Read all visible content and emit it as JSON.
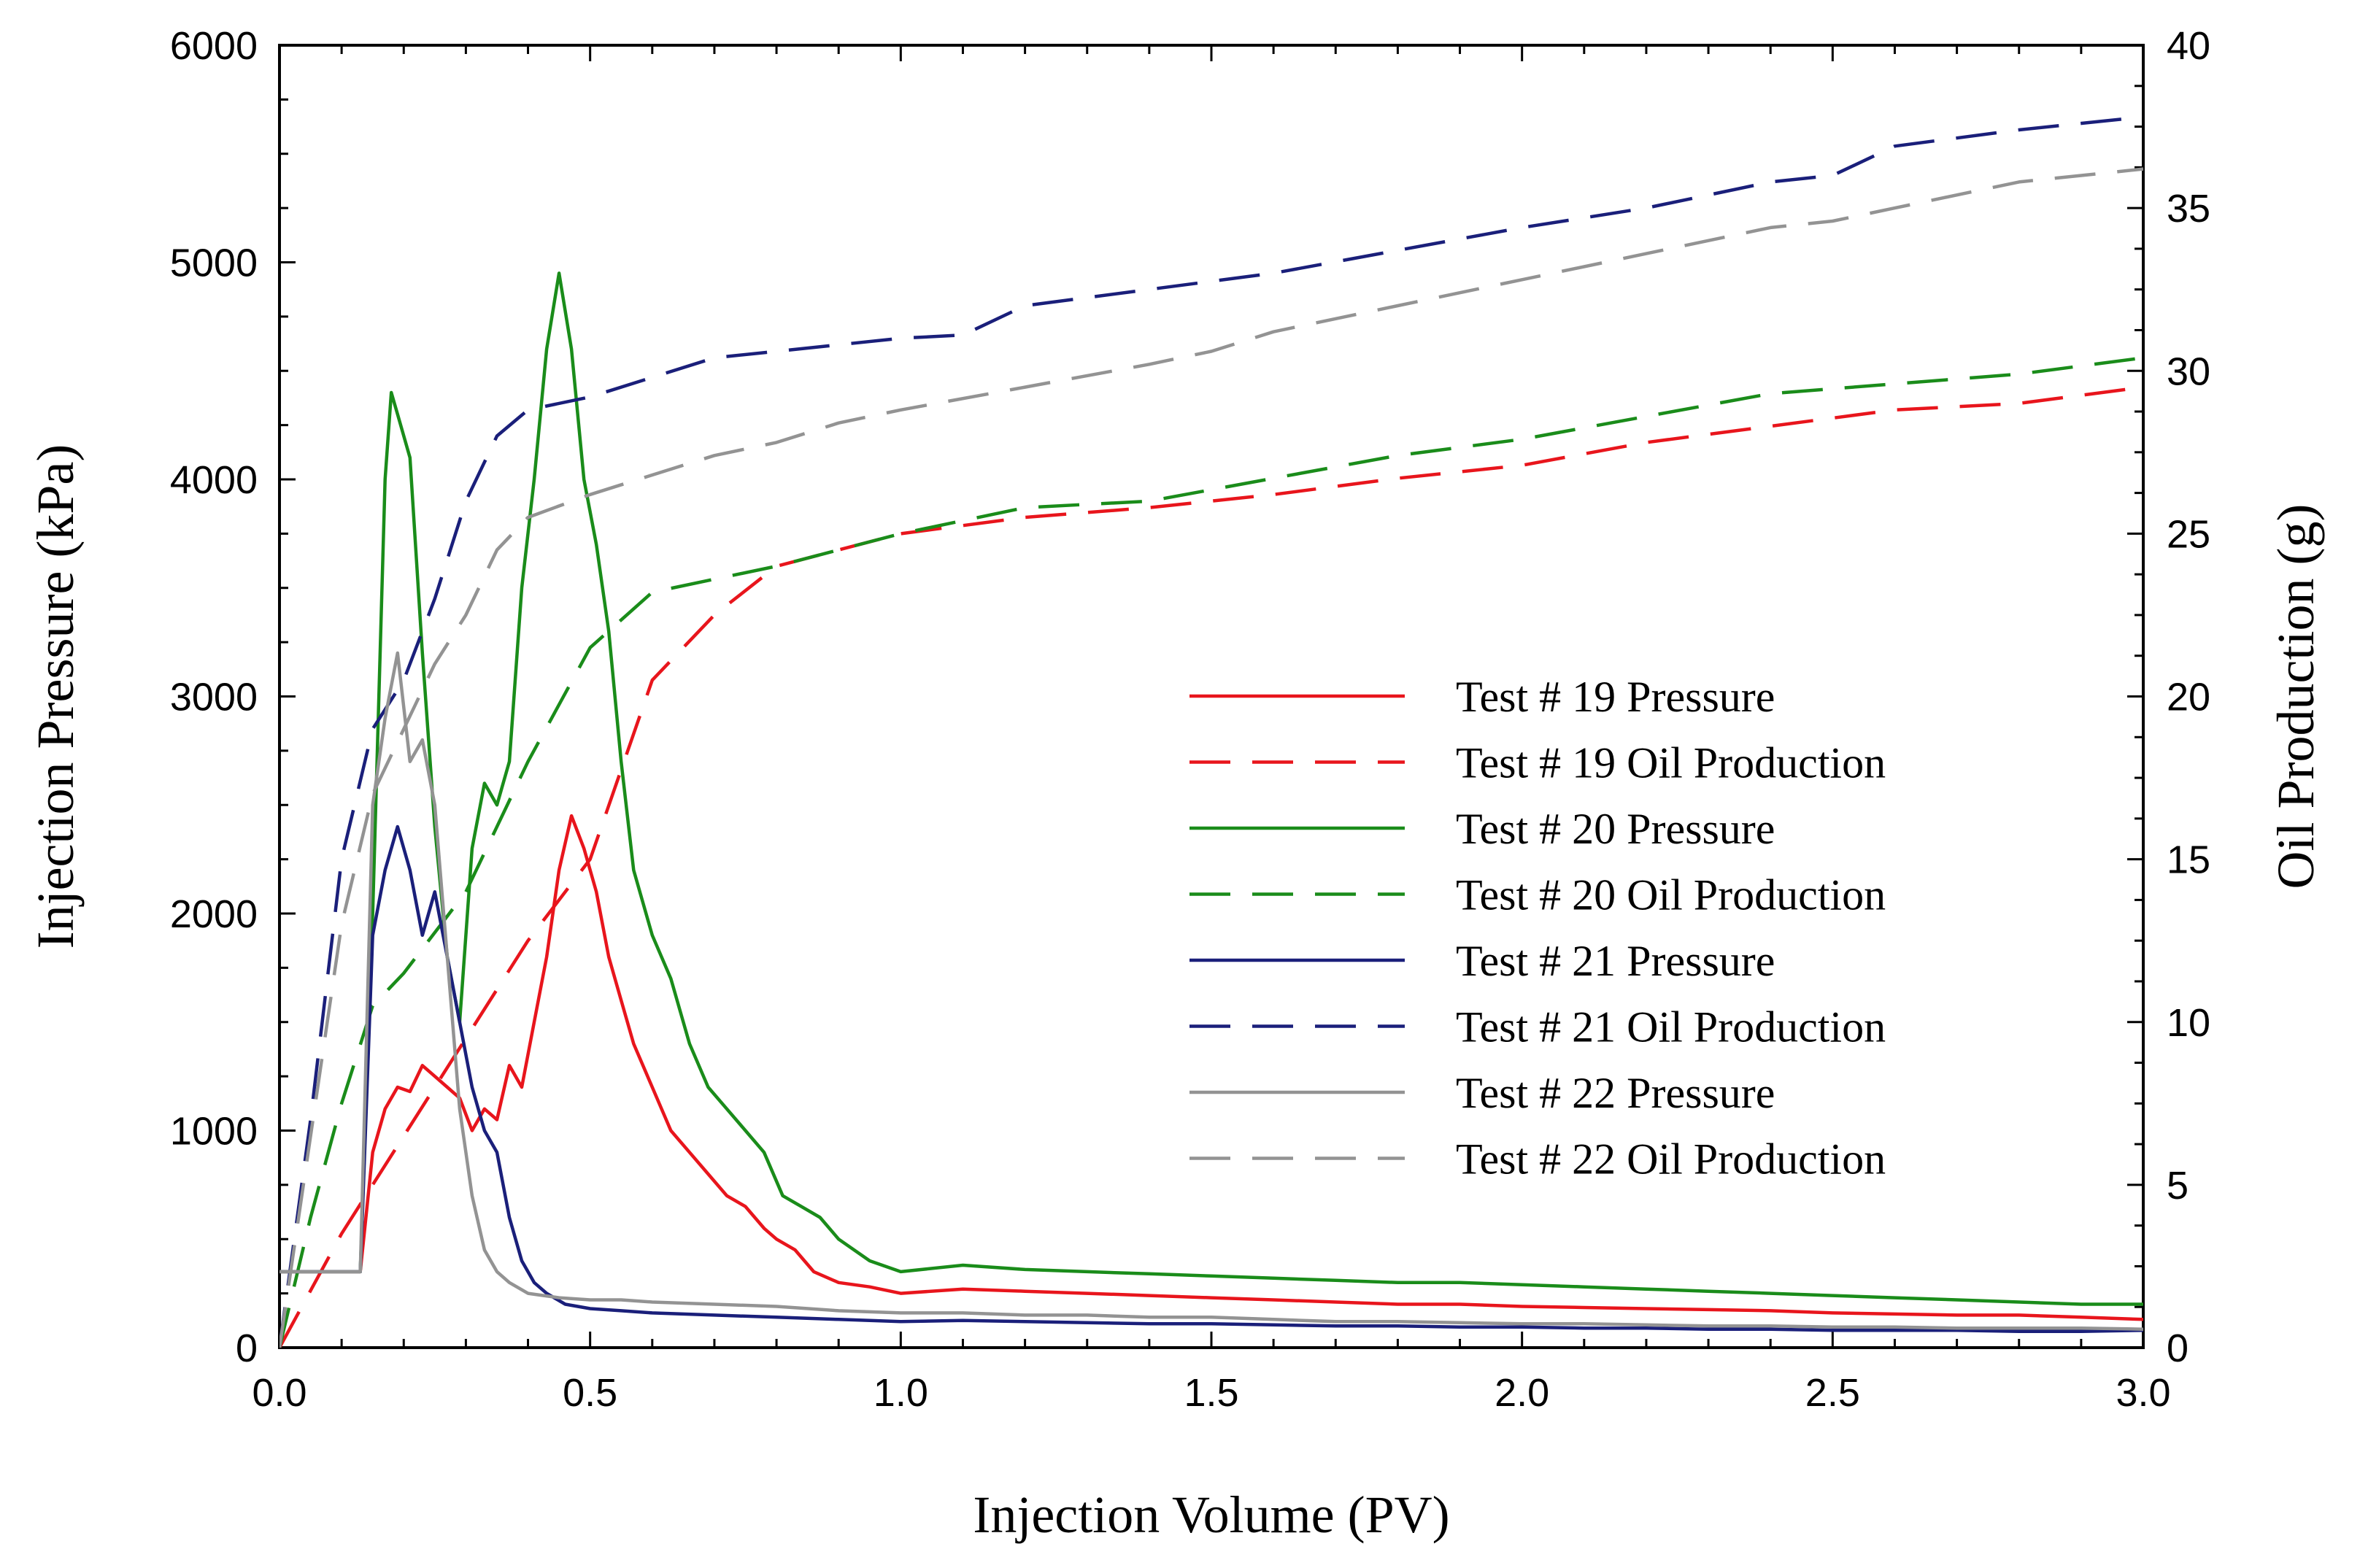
{
  "chart_data": {
    "type": "line",
    "title": "",
    "xlabel": "Injection Volume (PV)",
    "ylabel": "Injection Pressure (kPa)",
    "y2label": "Oil Production (g)",
    "xlim": [
      0,
      3
    ],
    "ylim": [
      0,
      6000
    ],
    "y2lim": [
      0,
      40
    ],
    "x_ticks": [
      0,
      0.5,
      1,
      1.5,
      2,
      2.5,
      3
    ],
    "x_tick_labels": [
      "0.0",
      "0.5",
      "1.0",
      "1.5",
      "2.0",
      "2.5",
      "3.0"
    ],
    "y_ticks": [
      0,
      1000,
      2000,
      3000,
      4000,
      5000,
      6000
    ],
    "y_tick_labels": [
      "0",
      "1000",
      "2000",
      "3000",
      "4000",
      "5000",
      "6000"
    ],
    "y2_ticks": [
      0,
      5,
      10,
      15,
      20,
      25,
      30,
      35,
      40
    ],
    "y2_tick_labels": [
      "0",
      "5",
      "10",
      "15",
      "20",
      "25",
      "30",
      "35",
      "40"
    ],
    "grid": false,
    "legend_position": "center-right",
    "series": [
      {
        "name": "Test # 19 Pressure",
        "color": "#e8151c",
        "style": "solid",
        "axis": "left",
        "x": [
          0,
          0.12,
          0.13,
          0.15,
          0.17,
          0.19,
          0.21,
          0.23,
          0.25,
          0.27,
          0.29,
          0.31,
          0.33,
          0.35,
          0.37,
          0.39,
          0.41,
          0.43,
          0.45,
          0.47,
          0.49,
          0.51,
          0.53,
          0.55,
          0.57,
          0.6,
          0.63,
          0.66,
          0.69,
          0.72,
          0.75,
          0.78,
          0.8,
          0.83,
          0.86,
          0.9,
          0.95,
          1,
          1.1,
          1.2,
          1.3,
          1.4,
          1.5,
          1.6,
          1.7,
          1.8,
          1.9,
          2,
          2.1,
          2.2,
          2.3,
          2.4,
          2.5,
          2.6,
          2.7,
          2.8,
          2.9,
          3
        ],
        "values": [
          350,
          350,
          350,
          900,
          1100,
          1200,
          1180,
          1300,
          1250,
          1200,
          1150,
          1000,
          1100,
          1050,
          1300,
          1200,
          1500,
          1800,
          2200,
          2450,
          2300,
          2100,
          1800,
          1600,
          1400,
          1200,
          1000,
          900,
          800,
          700,
          650,
          550,
          500,
          450,
          350,
          300,
          280,
          250,
          270,
          260,
          250,
          240,
          230,
          220,
          210,
          200,
          200,
          190,
          185,
          180,
          175,
          170,
          160,
          155,
          150,
          150,
          140,
          130
        ]
      },
      {
        "name": "Test # 19 Oil Production",
        "color": "#e8151c",
        "style": "dashed",
        "axis": "right",
        "x": [
          0,
          0.1,
          0.2,
          0.3,
          0.4,
          0.5,
          0.6,
          0.7,
          0.8,
          0.9,
          1,
          1.2,
          1.4,
          1.6,
          1.8,
          2,
          2.2,
          2.4,
          2.6,
          2.8,
          3
        ],
        "values": [
          0,
          3.5,
          6.5,
          9.5,
          12.5,
          15,
          20.5,
          22.5,
          24,
          24.5,
          25,
          25.5,
          25.8,
          26.2,
          26.7,
          27.1,
          27.8,
          28.3,
          28.8,
          29,
          29.5
        ]
      },
      {
        "name": "Test # 20 Pressure",
        "color": "#1a8c1a",
        "style": "solid",
        "axis": "left",
        "x": [
          0,
          0.12,
          0.13,
          0.15,
          0.17,
          0.18,
          0.19,
          0.21,
          0.23,
          0.25,
          0.27,
          0.29,
          0.31,
          0.33,
          0.35,
          0.37,
          0.39,
          0.41,
          0.43,
          0.45,
          0.47,
          0.49,
          0.51,
          0.53,
          0.55,
          0.57,
          0.6,
          0.63,
          0.66,
          0.69,
          0.72,
          0.75,
          0.78,
          0.81,
          0.84,
          0.87,
          0.9,
          0.95,
          1,
          1.1,
          1.2,
          1.3,
          1.4,
          1.5,
          1.6,
          1.7,
          1.8,
          1.9,
          2,
          2.1,
          2.2,
          2.3,
          2.4,
          2.5,
          2.6,
          2.7,
          2.8,
          2.9,
          3
        ],
        "values": [
          350,
          350,
          350,
          2000,
          4000,
          4400,
          4300,
          4100,
          3200,
          2400,
          1800,
          1500,
          2300,
          2600,
          2500,
          2700,
          3500,
          4000,
          4600,
          4950,
          4600,
          4000,
          3700,
          3300,
          2700,
          2200,
          1900,
          1700,
          1400,
          1200,
          1100,
          1000,
          900,
          700,
          650,
          600,
          500,
          400,
          350,
          380,
          360,
          350,
          340,
          330,
          320,
          310,
          300,
          300,
          290,
          280,
          270,
          260,
          250,
          240,
          230,
          220,
          210,
          200,
          200
        ]
      },
      {
        "name": "Test # 20 Oil Production",
        "color": "#1a8c1a",
        "style": "dashed",
        "axis": "right",
        "x": [
          0,
          0.05,
          0.1,
          0.15,
          0.2,
          0.3,
          0.4,
          0.5,
          0.6,
          0.7,
          0.8,
          0.9,
          1,
          1.2,
          1.4,
          1.6,
          1.8,
          2,
          2.2,
          2.4,
          2.6,
          2.8,
          3
        ],
        "values": [
          0,
          4,
          7.5,
          10.5,
          11.5,
          14,
          18,
          21.5,
          23.2,
          23.6,
          24,
          24.5,
          25,
          25.8,
          26,
          26.7,
          27.4,
          27.9,
          28.6,
          29.3,
          29.6,
          29.9,
          30.4
        ]
      },
      {
        "name": "Test # 21 Pressure",
        "color": "#1a1f7a",
        "style": "solid",
        "axis": "left",
        "x": [
          0,
          0.12,
          0.13,
          0.15,
          0.17,
          0.19,
          0.21,
          0.23,
          0.25,
          0.27,
          0.29,
          0.31,
          0.33,
          0.35,
          0.37,
          0.39,
          0.41,
          0.43,
          0.46,
          0.5,
          0.55,
          0.6,
          0.7,
          0.8,
          0.9,
          1,
          1.1,
          1.2,
          1.3,
          1.4,
          1.5,
          1.6,
          1.7,
          1.8,
          1.9,
          2,
          2.1,
          2.2,
          2.3,
          2.4,
          2.5,
          2.6,
          2.7,
          2.8,
          2.9,
          3
        ],
        "values": [
          350,
          350,
          350,
          1900,
          2200,
          2400,
          2200,
          1900,
          2100,
          1800,
          1500,
          1200,
          1000,
          900,
          600,
          400,
          300,
          250,
          200,
          180,
          170,
          160,
          150,
          140,
          130,
          120,
          125,
          120,
          115,
          110,
          110,
          105,
          100,
          100,
          95,
          95,
          90,
          90,
          85,
          85,
          80,
          80,
          80,
          75,
          75,
          80
        ]
      },
      {
        "name": "Test # 21 Oil Production",
        "color": "#1a1f7a",
        "style": "dashed",
        "axis": "right",
        "x": [
          0,
          0.05,
          0.1,
          0.15,
          0.2,
          0.25,
          0.3,
          0.35,
          0.4,
          0.5,
          0.6,
          0.7,
          0.8,
          0.9,
          1,
          1.1,
          1.2,
          1.4,
          1.6,
          1.8,
          2,
          2.2,
          2.4,
          2.5,
          2.6,
          2.8,
          3
        ],
        "values": [
          0,
          7,
          15,
          19,
          20.5,
          23,
          26,
          28,
          28.8,
          29.2,
          29.8,
          30.4,
          30.6,
          30.8,
          31,
          31.1,
          32,
          32.5,
          33,
          33.7,
          34.4,
          35,
          35.8,
          36,
          36.9,
          37.4,
          37.8
        ]
      },
      {
        "name": "Test # 22 Pressure",
        "color": "#939393",
        "style": "solid",
        "axis": "left",
        "x": [
          0,
          0.12,
          0.13,
          0.15,
          0.17,
          0.19,
          0.21,
          0.23,
          0.25,
          0.27,
          0.29,
          0.31,
          0.33,
          0.35,
          0.37,
          0.4,
          0.45,
          0.5,
          0.55,
          0.6,
          0.7,
          0.8,
          0.9,
          1,
          1.1,
          1.2,
          1.3,
          1.4,
          1.5,
          1.6,
          1.7,
          1.8,
          1.9,
          2,
          2.1,
          2.2,
          2.3,
          2.4,
          2.5,
          2.6,
          2.7,
          2.8,
          2.9,
          3
        ],
        "values": [
          350,
          350,
          350,
          2500,
          2900,
          3200,
          2700,
          2800,
          2500,
          1800,
          1100,
          700,
          450,
          350,
          300,
          250,
          230,
          220,
          220,
          210,
          200,
          190,
          170,
          160,
          160,
          150,
          150,
          140,
          140,
          130,
          120,
          120,
          115,
          110,
          110,
          105,
          100,
          100,
          95,
          95,
          90,
          90,
          90,
          85
        ]
      },
      {
        "name": "Test # 22 Oil Production",
        "color": "#939393",
        "style": "dashed",
        "axis": "right",
        "x": [
          0,
          0.05,
          0.1,
          0.15,
          0.2,
          0.25,
          0.3,
          0.35,
          0.4,
          0.5,
          0.6,
          0.7,
          0.8,
          0.9,
          1,
          1.2,
          1.4,
          1.5,
          1.6,
          1.8,
          2,
          2.2,
          2.4,
          2.5,
          2.6,
          2.8,
          3
        ],
        "values": [
          0,
          6.5,
          13,
          17,
          19,
          21,
          22.5,
          24.5,
          25.5,
          26.2,
          26.8,
          27.4,
          27.8,
          28.4,
          28.8,
          29.5,
          30.2,
          30.6,
          31.2,
          32,
          32.8,
          33.6,
          34.4,
          34.6,
          35,
          35.8,
          36.2
        ]
      }
    ]
  }
}
